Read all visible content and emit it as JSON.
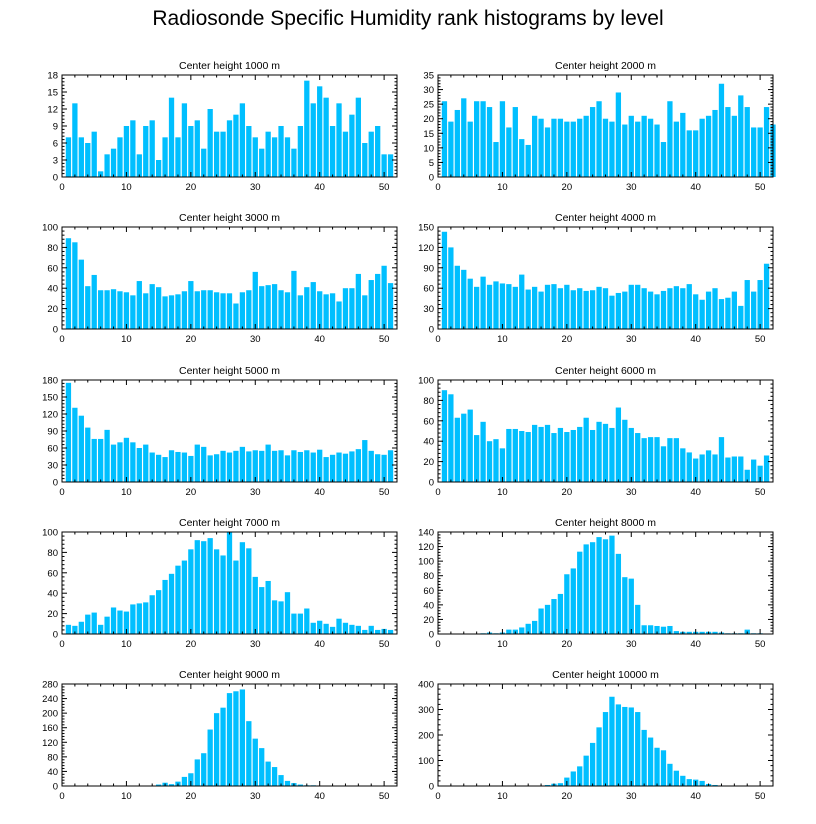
{
  "title": "Radiosonde Specific Humidity rank histograms by level",
  "bar_color": "#00BFFF",
  "chart_data": [
    {
      "type": "bar",
      "title": "Center height 1000 m",
      "xlim": [
        0,
        52
      ],
      "ylim": [
        0,
        18
      ],
      "xticks": [
        0,
        10,
        20,
        30,
        40,
        50
      ],
      "yticks": [
        0,
        3,
        6,
        9,
        12,
        15,
        18
      ],
      "values": [
        7,
        13,
        7,
        6,
        8,
        1,
        4,
        5,
        7,
        9,
        10,
        4,
        9,
        10,
        3,
        7,
        14,
        7,
        13,
        9,
        10,
        5,
        12,
        8,
        8,
        10,
        11,
        13,
        9,
        7,
        5,
        8,
        7,
        9,
        7,
        5,
        9,
        17,
        13,
        16,
        14,
        9,
        13,
        8,
        11,
        14,
        6,
        8,
        9,
        4,
        4
      ]
    },
    {
      "type": "bar",
      "title": "Center height 2000 m",
      "xlim": [
        0,
        52
      ],
      "ylim": [
        0,
        35
      ],
      "xticks": [
        0,
        10,
        20,
        30,
        40,
        50
      ],
      "yticks": [
        0,
        5,
        10,
        15,
        20,
        25,
        30,
        35
      ],
      "values": [
        26,
        19,
        23,
        27,
        19,
        26,
        26,
        24,
        12,
        26,
        17,
        24,
        13,
        11,
        21,
        20,
        17,
        20,
        20,
        19,
        19,
        20,
        21,
        24,
        26,
        20,
        19,
        29,
        18,
        21,
        19,
        21,
        20,
        18,
        12,
        26,
        19,
        22,
        16,
        16,
        20,
        21,
        23,
        32,
        24,
        21,
        28,
        24,
        17,
        17,
        24,
        18
      ]
    },
    {
      "type": "bar",
      "title": "Center height 3000 m",
      "xlim": [
        0,
        52
      ],
      "ylim": [
        0,
        100
      ],
      "xticks": [
        0,
        10,
        20,
        30,
        40,
        50
      ],
      "yticks": [
        0,
        20,
        40,
        60,
        80,
        100
      ],
      "values": [
        89,
        85,
        68,
        42,
        53,
        38,
        38,
        39,
        37,
        36,
        33,
        47,
        35,
        44,
        41,
        32,
        33,
        34,
        37,
        47,
        37,
        38,
        38,
        36,
        35,
        35,
        25,
        36,
        38,
        56,
        42,
        43,
        44,
        38,
        36,
        57,
        33,
        41,
        46,
        37,
        34,
        35,
        27,
        40,
        40,
        54,
        33,
        48,
        54,
        62,
        45
      ]
    },
    {
      "type": "bar",
      "title": "Center height 4000 m",
      "xlim": [
        0,
        52
      ],
      "ylim": [
        0,
        150
      ],
      "xticks": [
        0,
        10,
        20,
        30,
        40,
        50
      ],
      "yticks": [
        0,
        30,
        60,
        90,
        120,
        150
      ],
      "values": [
        143,
        120,
        93,
        87,
        74,
        62,
        77,
        65,
        70,
        67,
        66,
        62,
        80,
        58,
        62,
        55,
        65,
        66,
        60,
        65,
        57,
        60,
        56,
        57,
        62,
        60,
        49,
        53,
        55,
        65,
        65,
        60,
        55,
        51,
        56,
        60,
        63,
        60,
        66,
        51,
        43,
        55,
        60,
        44,
        46,
        55,
        34,
        72,
        55,
        72,
        96
      ]
    },
    {
      "type": "bar",
      "title": "Center height 5000 m",
      "xlim": [
        0,
        52
      ],
      "ylim": [
        0,
        180
      ],
      "xticks": [
        0,
        10,
        20,
        30,
        40,
        50
      ],
      "yticks": [
        0,
        30,
        60,
        90,
        120,
        150,
        180
      ],
      "values": [
        175,
        131,
        117,
        96,
        76,
        76,
        92,
        66,
        70,
        78,
        70,
        60,
        66,
        52,
        48,
        44,
        56,
        53,
        52,
        46,
        66,
        62,
        47,
        49,
        55,
        52,
        55,
        62,
        54,
        56,
        55,
        66,
        55,
        56,
        47,
        56,
        53,
        56,
        52,
        57,
        44,
        48,
        52,
        50,
        54,
        58,
        74,
        55,
        49,
        48,
        56
      ]
    },
    {
      "type": "bar",
      "title": "Center height 6000 m",
      "xlim": [
        0,
        52
      ],
      "ylim": [
        0,
        100
      ],
      "xticks": [
        0,
        10,
        20,
        30,
        40,
        50
      ],
      "yticks": [
        0,
        20,
        40,
        60,
        80,
        100
      ],
      "values": [
        90,
        86,
        63,
        67,
        71,
        46,
        59,
        40,
        42,
        33,
        52,
        52,
        50,
        49,
        56,
        54,
        56,
        48,
        53,
        49,
        51,
        54,
        63,
        51,
        59,
        57,
        53,
        73,
        61,
        53,
        48,
        43,
        44,
        44,
        35,
        43,
        43,
        33,
        29,
        23,
        27,
        31,
        27,
        44,
        24,
        25,
        25,
        12,
        22,
        16,
        26
      ]
    },
    {
      "type": "bar",
      "title": "Center height 7000 m",
      "xlim": [
        0,
        52
      ],
      "ylim": [
        0,
        100
      ],
      "xticks": [
        0,
        10,
        20,
        30,
        40,
        50
      ],
      "yticks": [
        0,
        20,
        40,
        60,
        80,
        100
      ],
      "values": [
        9,
        8,
        12,
        19,
        21,
        9,
        17,
        26,
        23,
        22,
        29,
        30,
        31,
        38,
        43,
        53,
        59,
        67,
        72,
        83,
        92,
        91,
        94,
        83,
        77,
        100,
        72,
        90,
        84,
        56,
        46,
        52,
        33,
        32,
        41,
        20,
        20,
        25,
        11,
        13,
        10,
        7,
        15,
        11,
        9,
        8,
        4,
        8,
        4,
        5,
        4
      ]
    },
    {
      "type": "bar",
      "title": "Center height 8000 m",
      "xlim": [
        0,
        52
      ],
      "ylim": [
        0,
        140
      ],
      "xticks": [
        0,
        10,
        20,
        30,
        40,
        50
      ],
      "yticks": [
        0,
        20,
        40,
        60,
        80,
        100,
        120,
        140
      ],
      "values": [
        0,
        0,
        0,
        0,
        0,
        0,
        1,
        2,
        1,
        2,
        6,
        6,
        9,
        14,
        18,
        35,
        40,
        48,
        55,
        82,
        90,
        113,
        123,
        126,
        133,
        130,
        135,
        110,
        78,
        76,
        40,
        12,
        12,
        11,
        10,
        11,
        4,
        3,
        3,
        3,
        3,
        3,
        3,
        2,
        1,
        1,
        1,
        6,
        1,
        1,
        0
      ]
    },
    {
      "type": "bar",
      "title": "Center height 9000 m",
      "xlim": [
        0,
        52
      ],
      "ylim": [
        0,
        280
      ],
      "xticks": [
        0,
        10,
        20,
        30,
        40,
        50
      ],
      "yticks": [
        0,
        40,
        80,
        120,
        160,
        200,
        240,
        280
      ],
      "values": [
        0,
        0,
        0,
        0,
        0,
        0,
        0,
        0,
        0,
        0,
        0,
        0,
        0,
        0,
        4,
        9,
        5,
        12,
        25,
        35,
        73,
        90,
        155,
        200,
        215,
        255,
        260,
        265,
        178,
        130,
        104,
        67,
        52,
        30,
        14,
        8,
        4,
        2,
        2,
        1,
        1,
        1,
        0,
        0,
        0,
        0,
        0,
        0,
        0,
        0,
        0
      ]
    },
    {
      "type": "bar",
      "title": "Center height 10000 m",
      "xlim": [
        0,
        52
      ],
      "ylim": [
        0,
        400
      ],
      "xticks": [
        0,
        10,
        20,
        30,
        40,
        50
      ],
      "yticks": [
        0,
        100,
        200,
        300,
        400
      ],
      "values": [
        0,
        0,
        0,
        0,
        0,
        0,
        0,
        0,
        0,
        0,
        0,
        0,
        0,
        0,
        0,
        0,
        4,
        9,
        11,
        33,
        57,
        77,
        119,
        169,
        230,
        290,
        350,
        320,
        310,
        308,
        290,
        220,
        190,
        150,
        140,
        87,
        60,
        40,
        27,
        25,
        20,
        8,
        4,
        2,
        1,
        1,
        0,
        0,
        0,
        0,
        0
      ]
    }
  ]
}
